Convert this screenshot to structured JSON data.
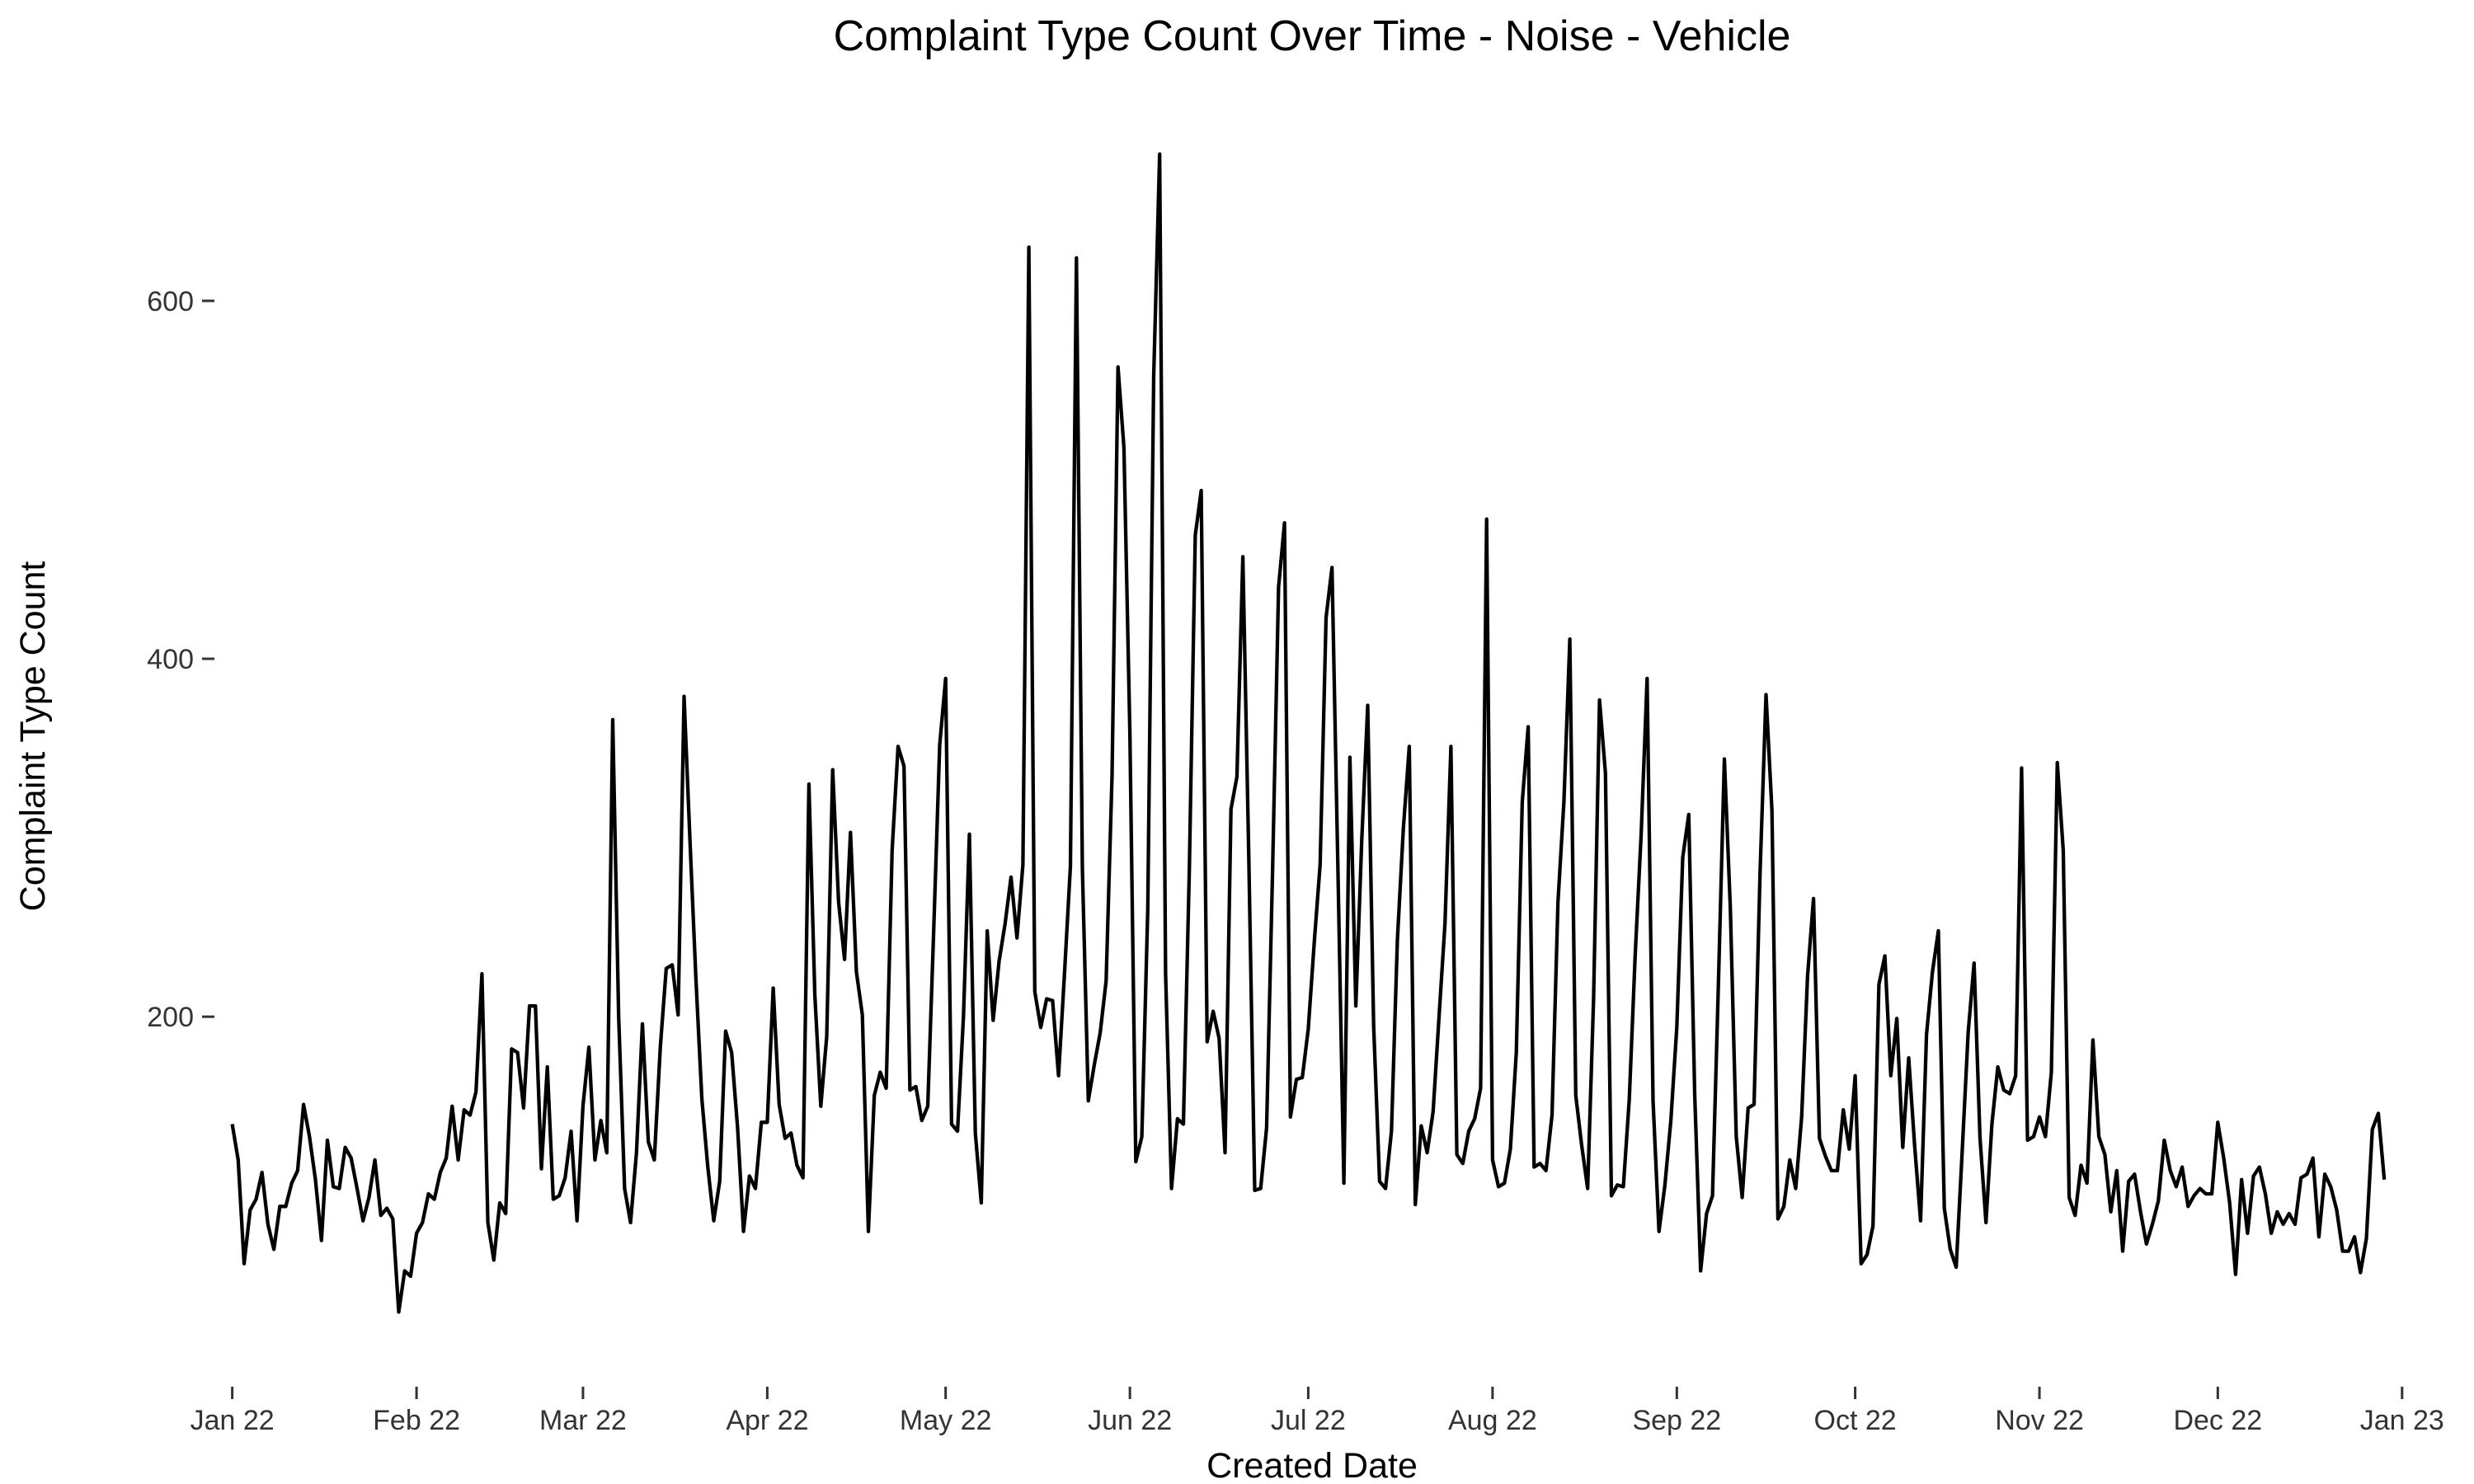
{
  "chart_data": {
    "type": "line",
    "title": "Complaint Type Count Over Time - Noise - Vehicle",
    "xlabel": "Created Date",
    "ylabel": "Complaint Type Count",
    "x_start": "2022-01-01",
    "x_end": "2022-12-31",
    "xlim": [
      "2021-12-29",
      "2023-01-02"
    ],
    "ylim": [
      8,
      699
    ],
    "x_ticks": [
      {
        "date": "2022-01-01",
        "label": "Jan 22"
      },
      {
        "date": "2022-02-01",
        "label": "Feb 22"
      },
      {
        "date": "2022-03-01",
        "label": "Mar 22"
      },
      {
        "date": "2022-04-01",
        "label": "Apr 22"
      },
      {
        "date": "2022-05-01",
        "label": "May 22"
      },
      {
        "date": "2022-06-01",
        "label": "Jun 22"
      },
      {
        "date": "2022-07-01",
        "label": "Jul 22"
      },
      {
        "date": "2022-08-01",
        "label": "Aug 22"
      },
      {
        "date": "2022-09-01",
        "label": "Sep 22"
      },
      {
        "date": "2022-10-01",
        "label": "Oct 22"
      },
      {
        "date": "2022-11-01",
        "label": "Nov 22"
      },
      {
        "date": "2022-12-01",
        "label": "Dec 22"
      },
      {
        "date": "2023-01-01",
        "label": "Jan 23"
      }
    ],
    "y_ticks": [
      {
        "value": 200,
        "label": "200"
      },
      {
        "value": 400,
        "label": "400"
      },
      {
        "value": 600,
        "label": "600"
      }
    ],
    "grid": false,
    "legend": "none",
    "line_color": "#000000",
    "values": [
      140,
      120,
      62,
      92,
      98,
      113,
      84,
      70,
      94,
      94,
      107,
      114,
      151,
      133,
      109,
      75,
      131,
      105,
      104,
      127,
      121,
      104,
      86,
      99,
      120,
      89,
      93,
      87,
      35,
      58,
      55,
      79,
      85,
      101,
      98,
      113,
      121,
      150,
      120,
      148,
      145,
      158,
      224,
      85,
      64,
      96,
      90,
      182,
      180,
      149,
      206,
      206,
      115,
      172,
      98,
      100,
      110,
      136,
      86,
      150,
      183,
      120,
      142,
      124,
      366,
      200,
      104,
      85,
      124,
      196,
      130,
      120,
      183,
      227,
      229,
      201,
      379,
      298,
      221,
      154,
      116,
      86,
      108,
      192,
      180,
      138,
      80,
      111,
      104,
      141,
      141,
      216,
      151,
      132,
      135,
      117,
      110,
      330,
      212,
      150,
      189,
      338,
      264,
      232,
      303,
      225,
      201,
      80,
      156,
      169,
      160,
      293,
      351,
      340,
      159,
      161,
      142,
      150,
      248,
      352,
      389,
      140,
      136,
      200,
      302,
      135,
      96,
      248,
      198,
      231,
      252,
      278,
      244,
      285,
      630,
      214,
      194,
      210,
      209,
      167,
      224,
      284,
      624,
      283,
      153,
      173,
      191,
      220,
      335,
      563,
      518,
      359,
      119,
      133,
      260,
      558,
      682,
      224,
      104,
      143,
      140,
      282,
      469,
      494,
      186,
      203,
      188,
      124,
      316,
      334,
      457,
      289,
      103,
      104,
      138,
      281,
      440,
      476,
      144,
      165,
      166,
      193,
      241,
      285,
      423,
      451,
      282,
      107,
      345,
      206,
      299,
      374,
      195,
      108,
      104,
      136,
      243,
      305,
      351,
      95,
      139,
      124,
      147,
      200,
      252,
      351,
      123,
      118,
      136,
      143,
      160,
      478,
      120,
      105,
      107,
      126,
      180,
      320,
      362,
      116,
      118,
      114,
      145,
      264,
      320,
      411,
      156,
      128,
      104,
      210,
      377,
      336,
      100,
      106,
      105,
      154,
      235,
      302,
      389,
      153,
      80,
      106,
      142,
      194,
      289,
      313,
      157,
      58,
      90,
      100,
      219,
      344,
      261,
      133,
      99,
      149,
      151,
      281,
      380,
      315,
      87,
      94,
      120,
      104,
      144,
      223,
      266,
      132,
      122,
      114,
      114,
      148,
      126,
      167,
      62,
      67,
      83,
      218,
      234,
      167,
      199,
      127,
      177,
      128,
      86,
      190,
      225,
      248,
      93,
      70,
      60,
      124,
      191,
      230,
      132,
      85,
      140,
      172,
      159,
      157,
      167,
      339,
      131,
      133,
      144,
      133,
      169,
      342,
      293,
      99,
      89,
      117,
      107,
      187,
      133,
      123,
      91,
      114,
      69,
      108,
      112,
      91,
      73,
      84,
      97,
      131,
      114,
      105,
      116,
      94,
      100,
      104,
      101,
      101,
      141,
      121,
      96,
      56,
      109,
      79,
      111,
      116,
      101,
      79,
      91,
      84,
      90,
      84,
      110,
      112,
      121,
      77,
      112,
      105,
      92,
      69,
      69,
      77,
      57,
      76,
      137,
      146,
      109
    ]
  }
}
